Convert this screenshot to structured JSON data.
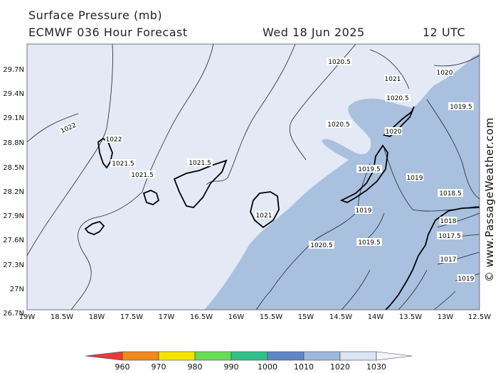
{
  "header": {
    "title": "Surface Pressure (mb)",
    "model": "ECMWF 036 Hour Forecast",
    "date": "Wed 18 Jun 2025",
    "time": "12 UTC"
  },
  "credit": "© www.PassageWeather.com",
  "map": {
    "lat_labels": [
      "29.7N",
      "29.4N",
      "29.1N",
      "28.8N",
      "28.5N",
      "28.2N",
      "27.9N",
      "27.6N",
      "27.3N",
      "27N",
      "26.7N"
    ],
    "lon_labels": [
      "19W",
      "18.5W",
      "18W",
      "17.5W",
      "17W",
      "16.5W",
      "16W",
      "15.5W",
      "15W",
      "14.5W",
      "14W",
      "13.5W",
      "13W",
      "12.5W"
    ],
    "isobar_labels": [
      "1020.5",
      "1021",
      "1020",
      "1020.5",
      "1019.5",
      "1022",
      "1022",
      "1021.5",
      "1021.5",
      "1021.5",
      "1020.5",
      "1020",
      "1019.5",
      "1019",
      "1019",
      "1018.5",
      "1018",
      "1017.5",
      "1017",
      "1019",
      "1019.5",
      "1020.5",
      "1021"
    ],
    "fill_colors": {
      "above_1020": "#e3e9f5",
      "1010_1020": "#a9c1df",
      "land_outline": "#000000"
    }
  },
  "colorbar": {
    "ticks": [
      "960",
      "970",
      "980",
      "990",
      "1000",
      "1010",
      "1020",
      "1030"
    ],
    "colors": [
      "#e83a3a",
      "#f08a1a",
      "#f5e400",
      "#67dd55",
      "#2fc08a",
      "#5e86c9",
      "#9db8db",
      "#dbe5f3"
    ]
  }
}
